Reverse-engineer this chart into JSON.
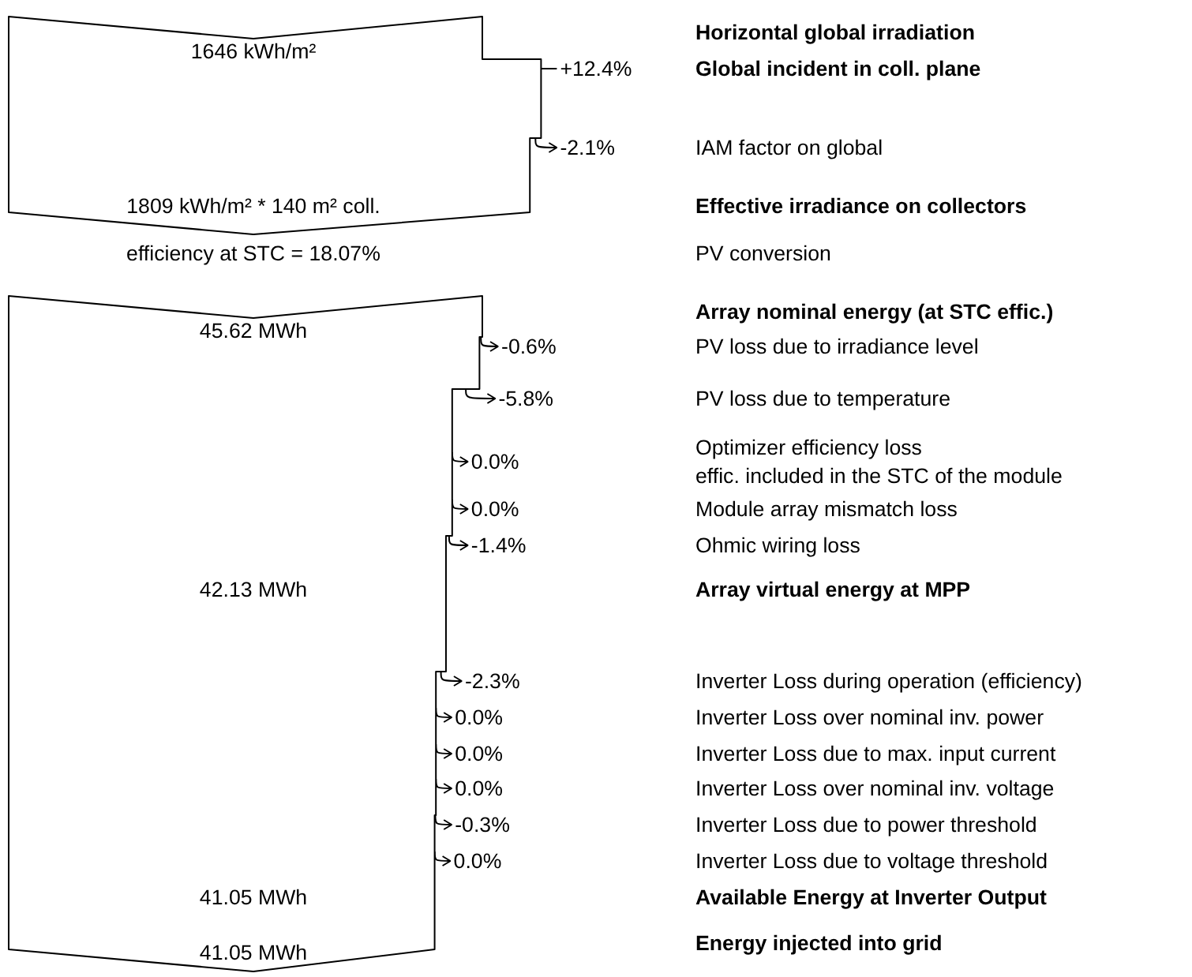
{
  "chart_data": {
    "type": "other",
    "categories": [
      "Horizontal global irradiation",
      "Global incident in coll. plane",
      "IAM factor on global",
      "Effective irradiance on collectors",
      "PV conversion",
      "Array nominal energy (at STC effic.)",
      "PV loss due to irradiance level",
      "PV loss due to temperature",
      "Optimizer efficiency loss\neffic. included in the STC of the module",
      "Module array mismatch loss",
      "Ohmic wiring loss",
      "Array virtual energy at MPP",
      "Inverter Loss during operation (efficiency)",
      "Inverter Loss over nominal inv. power",
      "Inverter Loss due to max. input current",
      "Inverter Loss over nominal inv. voltage",
      "Inverter Loss due to power threshold",
      "Inverter Loss due to voltage threshold",
      "Available Energy at Inverter Output",
      "Energy injected into grid"
    ],
    "values": [
      null,
      12.4,
      -2.1,
      null,
      null,
      null,
      -0.6,
      -5.8,
      0.0,
      0.0,
      -1.4,
      null,
      -2.3,
      0.0,
      0.0,
      0.0,
      -0.3,
      0.0,
      null,
      null
    ],
    "value_labels": [
      "1646 kWh/m²",
      "+12.4%",
      "-2.1%",
      "1809 kWh/m² * 140 m² coll.",
      null,
      "45.62 MWh",
      "-0.6%",
      "-5.8%",
      "0.0%",
      "0.0%",
      "-1.4%",
      "42.13 MWh",
      "-2.3%",
      "0.0%",
      "0.0%",
      "0.0%",
      "-0.3%",
      "0.0%",
      "41.05 MWh",
      "41.05 MWh"
    ],
    "annotations": [
      "efficiency at STC = 18.07%"
    ]
  }
}
